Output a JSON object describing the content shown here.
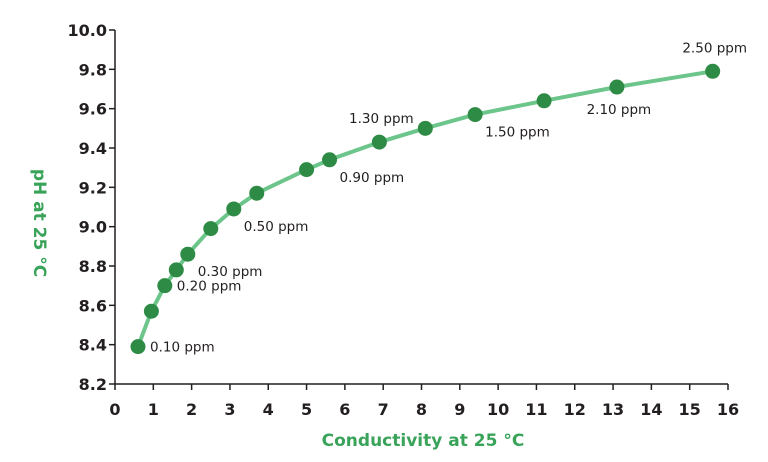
{
  "chart_data": {
    "type": "line",
    "title": "",
    "xlabel": "Conductivity at 25 °C",
    "ylabel": "pH at 25 °C",
    "xlim": [
      0,
      16
    ],
    "ylim": [
      8.2,
      10.0
    ],
    "xticks": [
      "0",
      "1",
      "2",
      "3",
      "4",
      "5",
      "6",
      "7",
      "8",
      "9",
      "10",
      "11",
      "12",
      "13",
      "14",
      "15",
      "16"
    ],
    "yticks": [
      "8.2",
      "8.4",
      "8.6",
      "8.8",
      "9.0",
      "9.2",
      "9.4",
      "9.6",
      "9.8",
      "10.0"
    ],
    "grid": false,
    "series": [
      {
        "points": [
          {
            "x": 0.6,
            "y": 8.39
          },
          {
            "x": 0.95,
            "y": 8.57
          },
          {
            "x": 1.3,
            "y": 8.7
          },
          {
            "x": 1.6,
            "y": 8.78
          },
          {
            "x": 1.9,
            "y": 8.86
          },
          {
            "x": 2.5,
            "y": 8.99
          },
          {
            "x": 3.1,
            "y": 9.09
          },
          {
            "x": 3.7,
            "y": 9.17
          },
          {
            "x": 5.0,
            "y": 9.29
          },
          {
            "x": 5.6,
            "y": 9.34
          },
          {
            "x": 6.9,
            "y": 9.43
          },
          {
            "x": 8.1,
            "y": 9.5
          },
          {
            "x": 9.4,
            "y": 9.57
          },
          {
            "x": 11.2,
            "y": 9.64
          },
          {
            "x": 13.1,
            "y": 9.71
          },
          {
            "x": 15.6,
            "y": 9.79
          }
        ]
      }
    ],
    "annotations": [
      {
        "text": "0.10 ppm",
        "x": 0.6,
        "y": 8.39,
        "position": "right"
      },
      {
        "text": "0.20 ppm",
        "x": 1.3,
        "y": 8.7,
        "position": "right"
      },
      {
        "text": "0.30 ppm",
        "x": 1.9,
        "y": 8.86,
        "position": "below-right"
      },
      {
        "text": "0.50 ppm",
        "x": 3.1,
        "y": 9.09,
        "position": "below-right"
      },
      {
        "text": "0.90 ppm",
        "x": 5.6,
        "y": 9.34,
        "position": "below-right"
      },
      {
        "text": "1.30 ppm",
        "x": 6.9,
        "y": 9.43,
        "position": "above"
      },
      {
        "text": "1.50 ppm",
        "x": 9.4,
        "y": 9.57,
        "position": "below-right"
      },
      {
        "text": "2.10 ppm",
        "x": 13.1,
        "y": 9.71,
        "position": "below"
      },
      {
        "text": "2.50 ppm",
        "x": 15.6,
        "y": 9.79,
        "position": "above"
      }
    ],
    "colors": {
      "line": "#6cc58a",
      "marker": "#2e8b45",
      "axis_title": "#3aa35a",
      "text": "#231f20"
    }
  }
}
